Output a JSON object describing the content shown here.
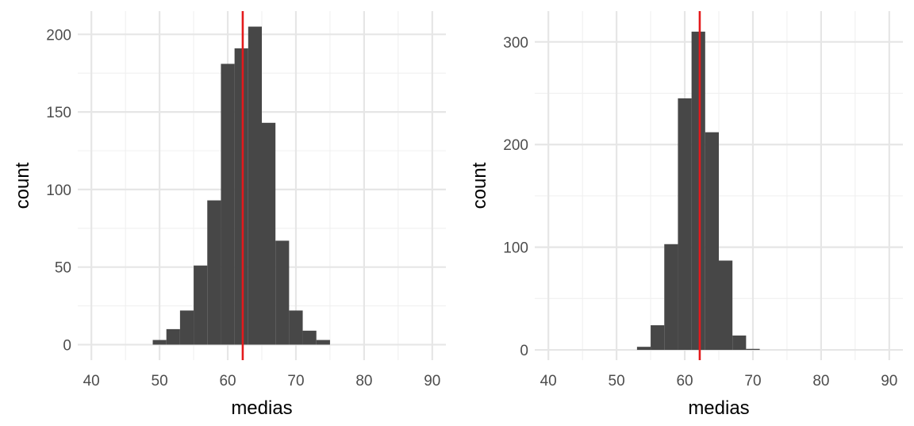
{
  "colors": {
    "bar": "#474747",
    "mean_line": "#e41a1c",
    "grid_major": "#e6e6e6",
    "grid_minor": "#f0f0f0"
  },
  "chart_data": [
    {
      "type": "bar",
      "xlabel": "medias",
      "ylabel": "count",
      "xlim": [
        38,
        92
      ],
      "ylim": [
        -10,
        215
      ],
      "x_ticks": [
        40,
        50,
        60,
        70,
        80,
        90
      ],
      "y_ticks": [
        0,
        50,
        100,
        150,
        200
      ],
      "bin_width": 2,
      "bin_starts": [
        49,
        51,
        53,
        55,
        57,
        59,
        61,
        63,
        65,
        67,
        69,
        71,
        73
      ],
      "values": [
        3,
        10,
        22,
        51,
        93,
        181,
        191,
        205,
        143,
        67,
        22,
        9,
        3
      ],
      "vline": 62.2
    },
    {
      "type": "bar",
      "xlabel": "medias",
      "ylabel": "count",
      "xlim": [
        38,
        92
      ],
      "ylim": [
        -10,
        330
      ],
      "x_ticks": [
        40,
        50,
        60,
        70,
        80,
        90
      ],
      "y_ticks": [
        0,
        100,
        200,
        300
      ],
      "bin_width": 2,
      "bin_starts": [
        53,
        55,
        57,
        59,
        61,
        63,
        65,
        67,
        69
      ],
      "values": [
        3,
        24,
        103,
        245,
        310,
        212,
        87,
        14,
        1
      ],
      "vline": 62.2
    }
  ]
}
